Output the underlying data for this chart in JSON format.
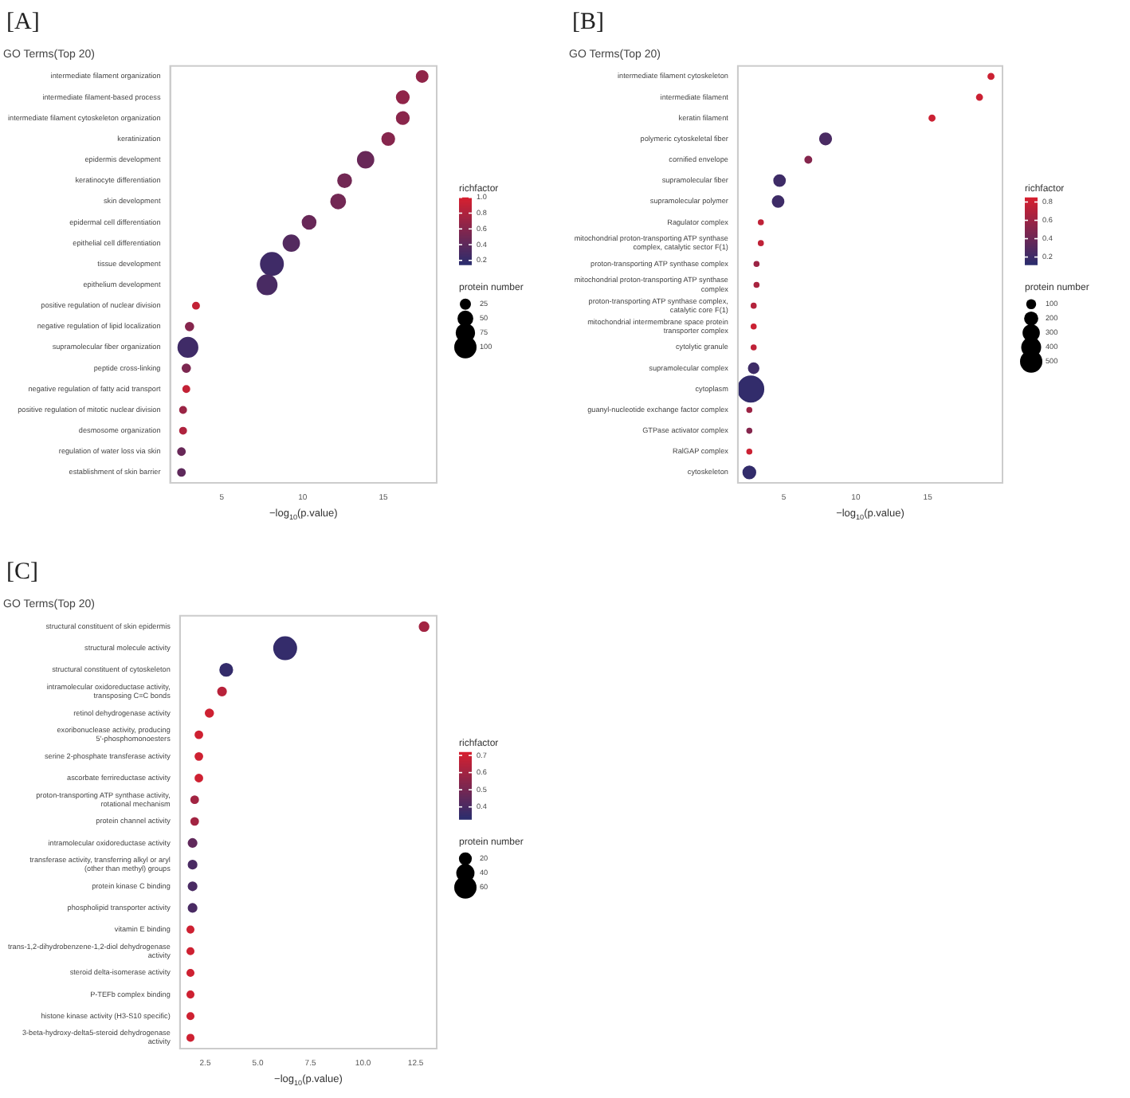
{
  "chart_data": [
    {
      "type": "bubble",
      "orientation": "horizontal",
      "title": "GO Terms(Top 20)",
      "xlabel": "−log$_{10}$(p.value)",
      "annotations": [
        "[A]"
      ],
      "clabel": "richfactor",
      "legend_title": "protein number",
      "categories": [
        "intermediate filament organization",
        "intermediate filament-based process",
        "intermediate filament cytoskeleton organization",
        "keratinization",
        "epidermis development",
        "keratinocyte differentiation",
        "skin development",
        "epidermal cell differentiation",
        "epithelial cell differentiation",
        "tissue development",
        "epithelium development",
        "positive regulation of nuclear division",
        "negative regulation of lipid localization",
        "supramolecular fiber organization",
        "peptide cross-linking",
        "negative regulation of fatty acid transport",
        "positive regulation of mitotic nuclear division",
        "desmosome organization",
        "regulation of water loss via skin",
        "establishment of skin barrier"
      ],
      "values": [
        17.4,
        16.2,
        16.2,
        15.3,
        13.9,
        12.6,
        12.2,
        10.4,
        9.3,
        8.1,
        7.8,
        3.4,
        3.0,
        2.9,
        2.8,
        2.8,
        2.6,
        2.6,
        2.5,
        2.5
      ],
      "sizes": [
        25,
        30,
        30,
        30,
        50,
        35,
        40,
        35,
        50,
        100,
        75,
        8,
        12,
        75,
        12,
        8,
        8,
        8,
        10,
        10
      ],
      "cvalues": [
        0.65,
        0.65,
        0.62,
        0.6,
        0.45,
        0.5,
        0.5,
        0.45,
        0.35,
        0.25,
        0.3,
        0.9,
        0.6,
        0.25,
        0.55,
        0.9,
        0.7,
        0.8,
        0.45,
        0.4
      ],
      "xlim": [
        1.8,
        18.3
      ],
      "xticks": [
        5,
        10,
        15
      ],
      "clim": [
        0.15,
        1.0
      ],
      "cticks": [
        {
          "value": 0.2,
          "label": "0.2"
        },
        {
          "value": 0.4,
          "label": "0.4"
        },
        {
          "value": 0.6,
          "label": "0.6"
        },
        {
          "value": 0.8,
          "label": "0.8"
        },
        {
          "value": 1.0,
          "label": "1.0"
        }
      ],
      "size_legend": [
        25,
        50,
        75,
        100
      ]
    },
    {
      "type": "bubble",
      "orientation": "horizontal",
      "title": "GO Terms(Top 20)",
      "xlabel": "−log$_{10}$(p.value)",
      "annotations": [
        "[B]"
      ],
      "clabel": "richfactor",
      "legend_title": "protein number",
      "categories": [
        "intermediate filament cytoskeleton",
        "intermediate filament",
        "keratin filament",
        "polymeric cytoskeletal fiber",
        "cornified envelope",
        "supramolecular fiber",
        "supramolecular polymer",
        "Ragulator complex",
        "mitochondrial proton-transporting ATP synthase complex, catalytic sector F(1)",
        "proton-transporting ATP synthase complex",
        "mitochondrial proton-transporting ATP synthase complex",
        "proton-transporting ATP synthase complex, catalytic core F(1)",
        "mitochondrial intermembrane space protein transporter complex",
        "cytolytic granule",
        "supramolecular complex",
        "cytoplasm",
        "guanyl-nucleotide exchange factor complex",
        "GTPase activator complex",
        "RalGAP complex",
        "cytoskeleton"
      ],
      "values": [
        19.4,
        18.6,
        15.3,
        7.9,
        6.7,
        4.7,
        4.6,
        3.4,
        3.4,
        3.1,
        3.1,
        2.9,
        2.9,
        2.9,
        2.9,
        2.7,
        2.6,
        2.6,
        2.6,
        2.6
      ],
      "sizes": [
        30,
        30,
        30,
        130,
        40,
        120,
        120,
        20,
        20,
        20,
        20,
        20,
        20,
        20,
        100,
        650,
        20,
        20,
        20,
        150
      ],
      "cvalues": [
        0.8,
        0.8,
        0.8,
        0.25,
        0.5,
        0.2,
        0.2,
        0.75,
        0.75,
        0.6,
        0.65,
        0.7,
        0.8,
        0.75,
        0.2,
        0.15,
        0.6,
        0.5,
        0.8,
        0.15
      ],
      "xlim": [
        1.8,
        20.2
      ],
      "xticks": [
        5,
        10,
        15
      ],
      "clim": [
        0.12,
        0.85
      ],
      "cticks": [
        {
          "value": 0.2,
          "label": "0.2"
        },
        {
          "value": 0.4,
          "label": "0.4"
        },
        {
          "value": 0.6,
          "label": "0.6"
        },
        {
          "value": 0.8,
          "label": "0.8"
        }
      ],
      "size_legend": [
        100,
        200,
        300,
        400,
        500
      ]
    },
    {
      "type": "bubble",
      "orientation": "horizontal",
      "title": "GO Terms(Top 20)",
      "xlabel": "−log$_{10}$(p.value)",
      "annotations": [
        "[C]"
      ],
      "clabel": "richfactor",
      "legend_title": "protein number",
      "categories": [
        "structural constituent of skin epidermis",
        "structural molecule activity",
        "structural constituent of cytoskeleton",
        "intramolecular oxidoreductase activity, transposing C=C bonds",
        "retinol dehydrogenase activity",
        "exoribonuclease activity, producing 5'-phosphomonoesters",
        "serine 2-phosphate transferase activity",
        "ascorbate ferrireductase activity",
        "proton-transporting ATP synthase activity, rotational mechanism",
        "protein channel activity",
        "intramolecular oxidoreductase activity",
        "transferase activity, transferring alkyl or aryl (other than methyl) groups",
        "protein kinase C binding",
        "phospholipid transporter activity",
        "vitamin E binding",
        "trans-1,2-dihydrobenzene-1,2-diol dehydrogenase activity",
        "steroid delta-isomerase activity",
        "P-TEFb complex binding",
        "histone kinase activity (H3-S10 specific)",
        "3-beta-hydroxy-delta5-steroid dehydrogenase activity"
      ],
      "values": [
        12.9,
        6.3,
        3.5,
        3.3,
        2.7,
        2.2,
        2.2,
        2.2,
        2.0,
        2.0,
        1.9,
        1.9,
        1.9,
        1.9,
        1.8,
        1.8,
        1.8,
        1.8,
        1.8,
        1.8
      ],
      "sizes": [
        10,
        60,
        18,
        8,
        7,
        6,
        6,
        6,
        6,
        6,
        8,
        8,
        8,
        8,
        5,
        5,
        5,
        5,
        5,
        5
      ],
      "cvalues": [
        0.6,
        0.35,
        0.35,
        0.65,
        0.7,
        0.7,
        0.7,
        0.7,
        0.6,
        0.6,
        0.45,
        0.4,
        0.4,
        0.4,
        0.7,
        0.7,
        0.7,
        0.7,
        0.7,
        0.7
      ],
      "xlim": [
        1.3,
        13.5
      ],
      "xticks": [
        {
          "value": 2.5,
          "label": "2.5"
        },
        {
          "value": 5,
          "label": "5.0"
        },
        {
          "value": 7.5,
          "label": "7.5"
        },
        {
          "value": 10,
          "label": "10.0"
        },
        {
          "value": 12.5,
          "label": "12.5"
        }
      ],
      "clim": [
        0.33,
        0.72
      ],
      "cticks": [
        {
          "value": 0.4,
          "label": "0.4"
        },
        {
          "value": 0.5,
          "label": "0.5"
        },
        {
          "value": 0.6,
          "label": "0.6"
        },
        {
          "value": 0.7,
          "label": "0.7"
        }
      ],
      "size_legend": [
        20,
        40,
        60
      ]
    }
  ]
}
